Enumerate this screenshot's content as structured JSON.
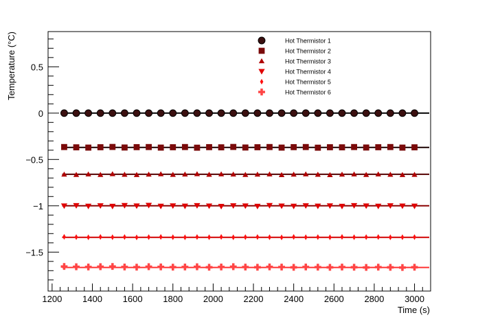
{
  "chart_data": {
    "type": "scatter",
    "title": "",
    "xlabel": "Time (s)",
    "ylabel": "Temperature (°C)",
    "xlim": [
      1180,
      3080
    ],
    "ylim": [
      -1.92,
      0.88
    ],
    "x_ticks": [
      1200,
      1400,
      1600,
      1800,
      2000,
      2200,
      2400,
      2600,
      2800,
      3000
    ],
    "x_tick_labels": [
      "1200",
      "1400",
      "1600",
      "1800",
      "2000",
      "2200",
      "2400",
      "2600",
      "2800",
      "3000"
    ],
    "y_ticks": [
      -1.5,
      -1,
      -0.5,
      0,
      0.5
    ],
    "y_tick_labels": [
      "−1.5",
      "−1",
      "−0.5",
      "0",
      "0.5"
    ],
    "grid": false,
    "legend_position": "top-right",
    "x": [
      1260,
      1320,
      1380,
      1440,
      1500,
      1560,
      1620,
      1680,
      1740,
      1800,
      1860,
      1920,
      1980,
      2040,
      2100,
      2160,
      2220,
      2280,
      2340,
      2400,
      2460,
      2520,
      2580,
      2640,
      2700,
      2760,
      2820,
      2880,
      2940,
      3000
    ],
    "series": [
      {
        "name": "Hot Thermistor 1",
        "marker": "circle",
        "color": "#3b1010",
        "fit_color": "#000000",
        "fit_value": 0.0,
        "values": [
          0,
          0,
          0,
          0,
          0,
          0,
          0,
          0,
          0,
          0,
          0,
          0,
          0,
          0,
          0,
          0,
          0,
          0,
          0,
          0,
          0,
          0,
          0,
          0,
          0,
          0,
          0,
          0,
          0,
          0
        ]
      },
      {
        "name": "Hot Thermistor 2",
        "marker": "square",
        "color": "#7a0a0a",
        "fit_color": "#1a0000",
        "fit_value": -0.37,
        "values": [
          -0.366,
          -0.369,
          -0.372,
          -0.368,
          -0.365,
          -0.371,
          -0.367,
          -0.366,
          -0.372,
          -0.368,
          -0.366,
          -0.373,
          -0.367,
          -0.369,
          -0.365,
          -0.371,
          -0.368,
          -0.366,
          -0.372,
          -0.367,
          -0.366,
          -0.373,
          -0.368,
          -0.369,
          -0.366,
          -0.371,
          -0.368,
          -0.366,
          -0.372,
          -0.369
        ]
      },
      {
        "name": "Hot Thermistor 3",
        "marker": "triangle-up",
        "color": "#b00000",
        "fit_color": "#550000",
        "fit_value": -0.66,
        "values": [
          -0.662,
          -0.665,
          -0.66,
          -0.665,
          -0.657,
          -0.663,
          -0.666,
          -0.662,
          -0.658,
          -0.664,
          -0.661,
          -0.657,
          -0.663,
          -0.659,
          -0.661,
          -0.665,
          -0.662,
          -0.66,
          -0.667,
          -0.662,
          -0.659,
          -0.663,
          -0.667,
          -0.662,
          -0.66,
          -0.665,
          -0.66,
          -0.663,
          -0.666,
          -0.664
        ]
      },
      {
        "name": "Hot Thermistor 4",
        "marker": "triangle-down",
        "color": "#e00000",
        "fit_color": "#8a0000",
        "fit_value": -1.0,
        "values": [
          -1.0,
          -0.997,
          -1.003,
          -0.998,
          -1.004,
          -0.996,
          -1.0,
          -0.994,
          -1.003,
          -0.999,
          -1.002,
          -0.997,
          -1.001,
          -1.005,
          -0.998,
          -1.0,
          -1.004,
          -0.996,
          -1.001,
          -1.003,
          -0.998,
          -1.002,
          -0.999,
          -1.004,
          -0.997,
          -1.0,
          -1.003,
          -0.998,
          -1.001,
          -1.002
        ]
      },
      {
        "name": "Hot Thermistor 5",
        "marker": "diamond",
        "color": "#ff1010",
        "fit_color": "#d00000",
        "fit_value": -1.34,
        "values": [
          -1.335,
          -1.338,
          -1.34,
          -1.336,
          -1.339,
          -1.337,
          -1.341,
          -1.338,
          -1.336,
          -1.339,
          -1.34,
          -1.337,
          -1.339,
          -1.336,
          -1.34,
          -1.338,
          -1.337,
          -1.339,
          -1.341,
          -1.336,
          -1.339,
          -1.338,
          -1.34,
          -1.336,
          -1.339,
          -1.338,
          -1.337,
          -1.34,
          -1.339,
          -1.338
        ]
      },
      {
        "name": "Hot Thermistor 6",
        "marker": "cross",
        "color": "#ff4545",
        "fit_color": "#ff3030",
        "fit_value": -1.665,
        "values": [
          -1.655,
          -1.658,
          -1.66,
          -1.657,
          -1.655,
          -1.66,
          -1.662,
          -1.657,
          -1.659,
          -1.662,
          -1.66,
          -1.658,
          -1.663,
          -1.66,
          -1.657,
          -1.661,
          -1.663,
          -1.659,
          -1.661,
          -1.664,
          -1.66,
          -1.662,
          -1.664,
          -1.661,
          -1.663,
          -1.665,
          -1.662,
          -1.664,
          -1.666,
          -1.663
        ]
      }
    ]
  }
}
